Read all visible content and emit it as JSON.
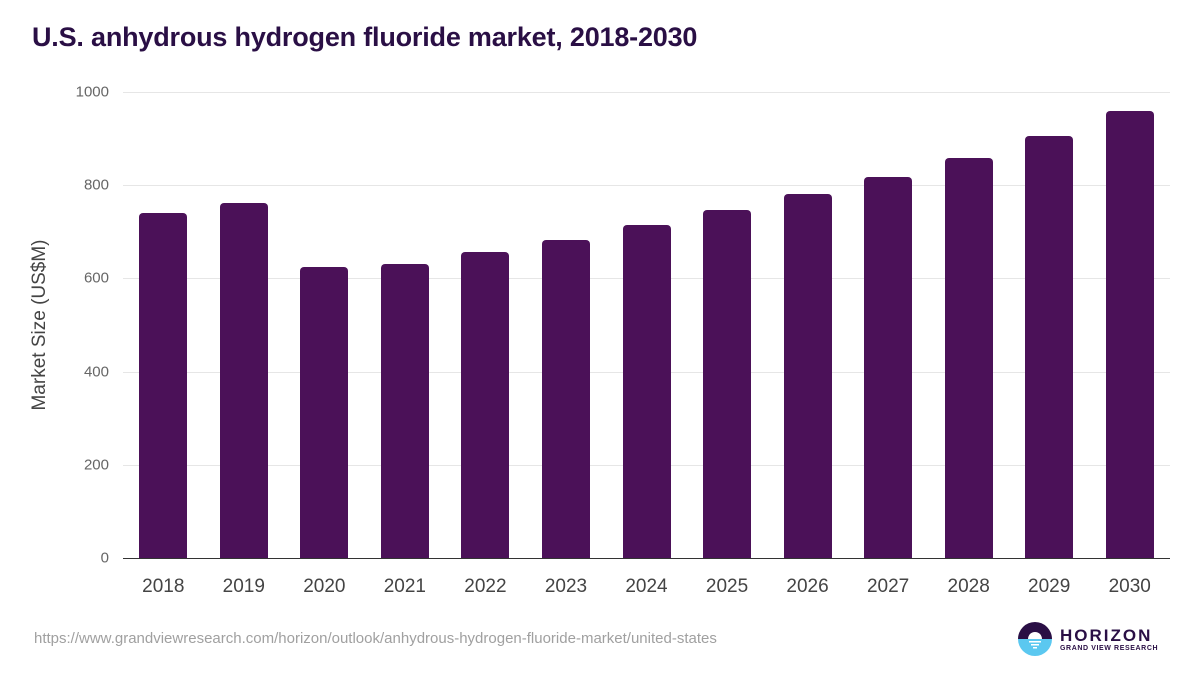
{
  "title": "U.S. anhydrous hydrogen fluoride market, 2018-2030",
  "source_url": "https://www.grandviewresearch.com/horizon/outlook/anhydrous-hydrogen-fluoride-market/united-states",
  "logo": {
    "name": "HORIZON",
    "subtitle": "GRAND VIEW RESEARCH"
  },
  "colors": {
    "bar": "#4b1158",
    "title": "#2a0f45",
    "logo_top": "#2a0f45",
    "logo_bottom": "#5bc8f0"
  },
  "chart_data": {
    "type": "bar",
    "title": "U.S. anhydrous hydrogen fluoride market, 2018-2030",
    "xlabel": "",
    "ylabel": "Market Size (US$M)",
    "categories": [
      "2018",
      "2019",
      "2020",
      "2021",
      "2022",
      "2023",
      "2024",
      "2025",
      "2026",
      "2027",
      "2028",
      "2029",
      "2030"
    ],
    "values": [
      740,
      762,
      624,
      631,
      657,
      682,
      715,
      747,
      781,
      818,
      858,
      906,
      959
    ],
    "ylim": [
      0,
      1000
    ],
    "yticks": [
      0,
      200,
      400,
      600,
      800,
      1000
    ],
    "grid": true,
    "legend": null
  }
}
